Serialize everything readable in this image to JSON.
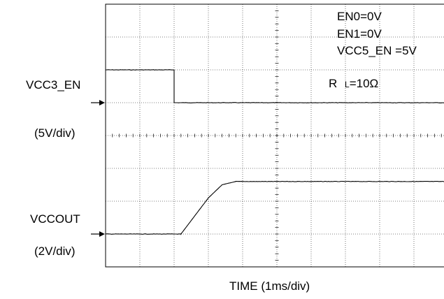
{
  "chart_data": {
    "type": "line",
    "x_divisions": 10,
    "y_divisions": 8,
    "grid": true,
    "grid_style": "dotted",
    "xlabel": "TIME (1ms/div)",
    "annotations": [
      "EN0=0V",
      "EN1=0V",
      "VCC5_EN =5V"
    ],
    "load_label": "R",
    "load_subscript": "L",
    "load_value": "=10Ω",
    "series": [
      {
        "name": "VCC3_EN",
        "scale": "(5V/div)",
        "baseline_div": 5,
        "unit": "div",
        "x": [
          0,
          2,
          2,
          10
        ],
        "y": [
          1.0,
          1.0,
          0.0,
          0.0
        ]
      },
      {
        "name": "VCCOUT",
        "scale": "(2V/div)",
        "baseline_div": 1,
        "unit": "div",
        "x": [
          0,
          2.2,
          3.0,
          3.4,
          3.8,
          10
        ],
        "y": [
          0.0,
          0.0,
          1.1,
          1.5,
          1.6,
          1.6
        ]
      }
    ]
  }
}
